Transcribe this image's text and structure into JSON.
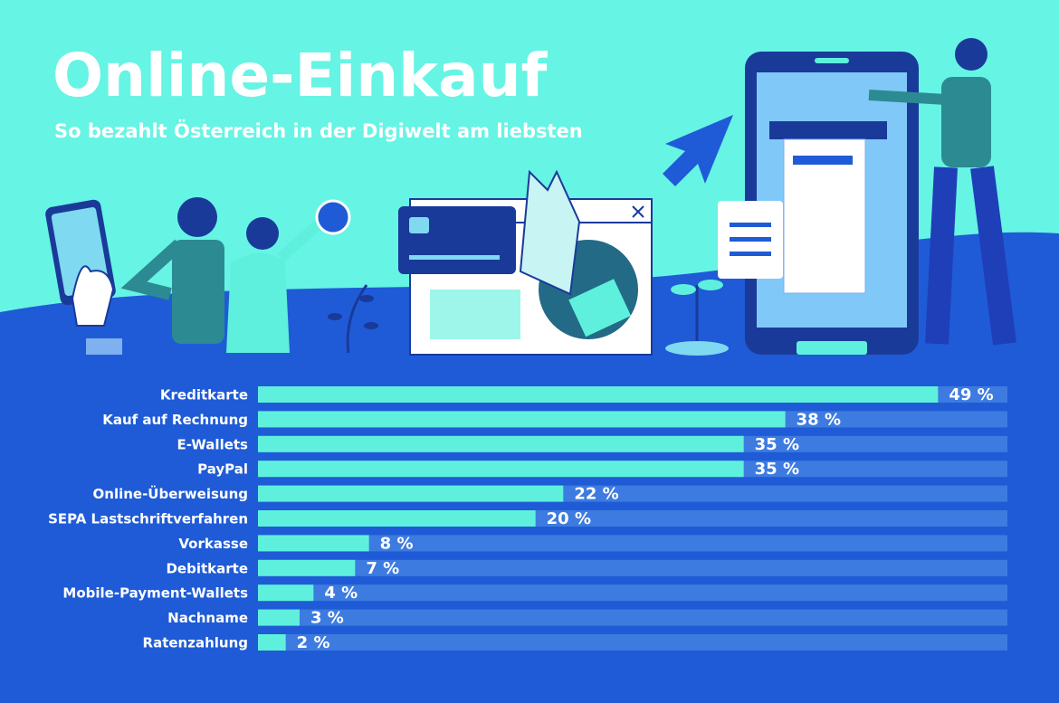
{
  "chart_data": {
    "type": "bar",
    "orientation": "horizontal",
    "title": "Online-Einkauf",
    "subtitle": "So bezahlt Österreich in der Digiwelt am liebsten",
    "categories": [
      "Kreditkarte",
      "Kauf auf Rechnung",
      "E-Wallets",
      "PayPal",
      "Online-Überweisung",
      "SEPA Lastschriftverfahren",
      "Vorkasse",
      "Debitkarte",
      "Mobile-Payment-Wallets",
      "Nachname",
      "Ratenzahlung"
    ],
    "values": [
      49,
      38,
      35,
      35,
      22,
      20,
      8,
      7,
      4,
      3,
      2
    ],
    "value_labels": [
      "49 %",
      "38 %",
      "35 %",
      "35 %",
      "22 %",
      "20 %",
      "8 %",
      "7 %",
      "4 %",
      "3 %",
      "2 %"
    ],
    "color": "#5ef0dc",
    "track_color": "#3d7be0",
    "xlim": [
      0,
      54
    ]
  }
}
